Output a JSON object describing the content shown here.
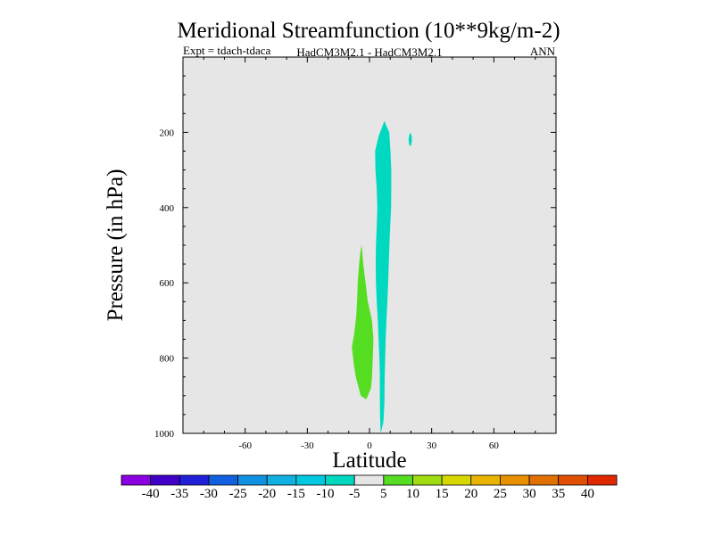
{
  "chart_data": {
    "type": "filled-contour",
    "title": "Meridional Streamfunction (10**9kg/m-2)",
    "subtitle_left": "Expt = tdach-tdaca",
    "subtitle_center": "HadCM3M2.1 - HadCM3M2.1",
    "subtitle_right": "ANN",
    "xlabel": "Latitude",
    "ylabel": "Pressure (in hPa)",
    "xlim": [
      -90,
      90
    ],
    "ylim": [
      1000,
      0
    ],
    "x_ticks": [
      -60,
      -30,
      0,
      30,
      60
    ],
    "x_tick_labels": [
      "-60",
      "-30",
      "0",
      "30",
      "60"
    ],
    "y_ticks": [
      200,
      400,
      600,
      800,
      1000
    ],
    "y_tick_labels": [
      "200",
      "400",
      "600",
      "800",
      "1000"
    ],
    "background_color": "#e6e6e6",
    "regions": [
      {
        "name": "negative-cell-5-10",
        "level_range": [
          -10,
          -5
        ],
        "color": "#00d9c0",
        "points": [
          [
            5.4,
            1000
          ],
          [
            6.7,
            970
          ],
          [
            7.2,
            920
          ],
          [
            7.3,
            850
          ],
          [
            7.6,
            800
          ],
          [
            7.8,
            750
          ],
          [
            8.2,
            700
          ],
          [
            8.6,
            650
          ],
          [
            9,
            600
          ],
          [
            9.3,
            550
          ],
          [
            9.6,
            500
          ],
          [
            10,
            450
          ],
          [
            10.4,
            400
          ],
          [
            10.5,
            350
          ],
          [
            10.5,
            300
          ],
          [
            10.1,
            250
          ],
          [
            9.5,
            200
          ],
          [
            7.2,
            170
          ],
          [
            4.4,
            210
          ],
          [
            2.7,
            250
          ],
          [
            2.9,
            300
          ],
          [
            3.5,
            350
          ],
          [
            3.8,
            400
          ],
          [
            3.5,
            450
          ],
          [
            3.1,
            500
          ],
          [
            3,
            550
          ],
          [
            3.1,
            600
          ],
          [
            3.5,
            650
          ],
          [
            4,
            700
          ],
          [
            4.4,
            750
          ],
          [
            4.8,
            800
          ],
          [
            5,
            850
          ],
          [
            5,
            900
          ],
          [
            5.1,
            950
          ],
          [
            5.4,
            1000
          ]
        ]
      },
      {
        "name": "negative-cell-small",
        "level_range": [
          -10,
          -5
        ],
        "color": "#00d9c0",
        "points": [
          [
            19.7,
            201
          ],
          [
            20.4,
            210
          ],
          [
            20.4,
            225
          ],
          [
            19.9,
            238
          ],
          [
            19.1,
            232
          ],
          [
            18.8,
            218
          ],
          [
            19.3,
            205
          ],
          [
            19.7,
            201
          ]
        ]
      },
      {
        "name": "positive-cell-5-10",
        "level_range": [
          5,
          10
        ],
        "color": "#55dd22",
        "points": [
          [
            -3.8,
            500
          ],
          [
            -3,
            550
          ],
          [
            -1.9,
            600
          ],
          [
            -0.8,
            650
          ],
          [
            1.2,
            700
          ],
          [
            1.9,
            750
          ],
          [
            1.6,
            800
          ],
          [
            1.2,
            850
          ],
          [
            0.7,
            880
          ],
          [
            -1.6,
            910
          ],
          [
            -4.2,
            900
          ],
          [
            -6.6,
            850
          ],
          [
            -7.5,
            820
          ],
          [
            -8.5,
            770
          ],
          [
            -7.5,
            740
          ],
          [
            -6.4,
            690
          ],
          [
            -6,
            650
          ],
          [
            -5.7,
            600
          ],
          [
            -5,
            550
          ],
          [
            -4.3,
            515
          ],
          [
            -3.8,
            500
          ]
        ]
      }
    ],
    "colorbar": {
      "colors": [
        "#8a00e0",
        "#4000c8",
        "#2020d8",
        "#1060e0",
        "#1090e0",
        "#10b0e0",
        "#00c8e0",
        "#00d9c0",
        "#e6e6e6",
        "#55dd22",
        "#a0dd10",
        "#d8d800",
        "#e8b400",
        "#e89000",
        "#e07000",
        "#e05000",
        "#e02800"
      ],
      "labels": [
        "-40",
        "-35",
        "-30",
        "-25",
        "-20",
        "-15",
        "-10",
        "-5",
        "5",
        "10",
        "15",
        "20",
        "25",
        "30",
        "35",
        "40"
      ]
    }
  }
}
